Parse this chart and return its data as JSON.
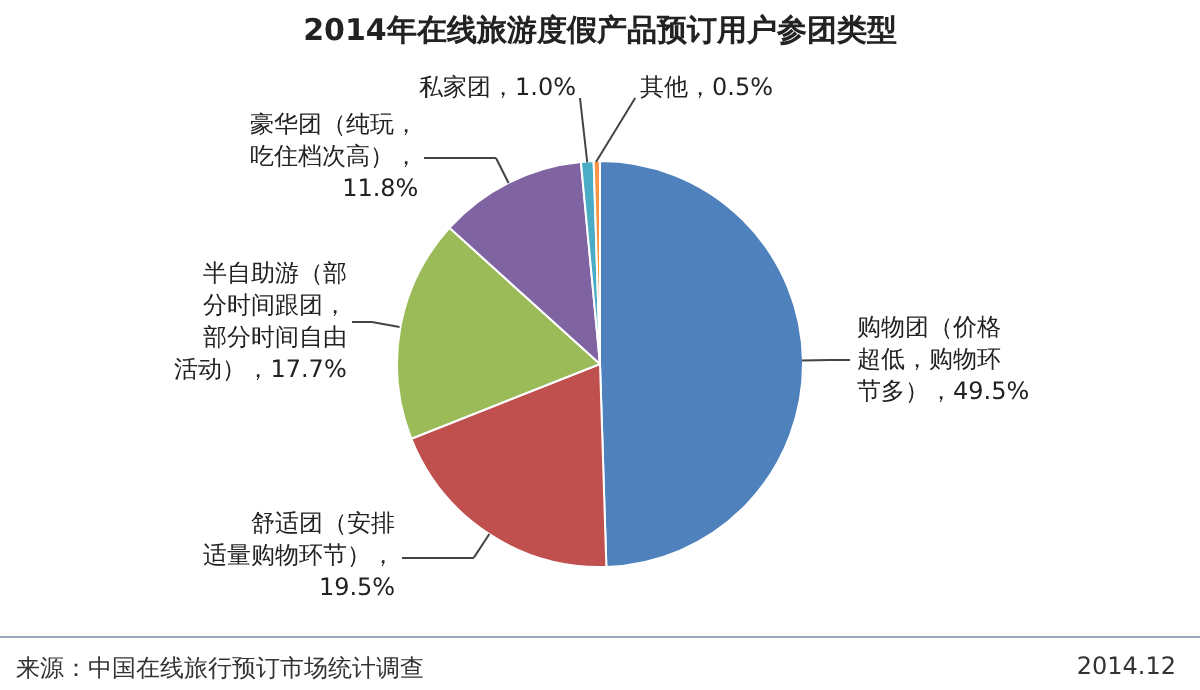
{
  "chart_data": {
    "type": "pie",
    "title": "2014年在线旅游度假产品预订用户参团类型",
    "categories": [
      "购物团（价格超低，购物环节多）",
      "舒适团（安排适量购物环节）",
      "半自助游（部分时间跟团，部分时间自由活动）",
      "豪华团（纯玩，吃住档次高）",
      "私家团",
      "其他"
    ],
    "values": [
      49.5,
      19.5,
      17.7,
      11.8,
      1.0,
      0.5
    ],
    "value_labels": [
      "，49.5%",
      "，19.5%",
      "，17.7%",
      "，11.8%",
      "，1.0%",
      "，0.5%"
    ],
    "colors": [
      "#4f81bd",
      "#c0504d",
      "#9bbb59",
      "#8064a2",
      "#4bacc6",
      "#f79646"
    ],
    "legend": false,
    "annotations": [
      "来源：中国在线旅行预订市场统计调查",
      "2014.12"
    ]
  }
}
